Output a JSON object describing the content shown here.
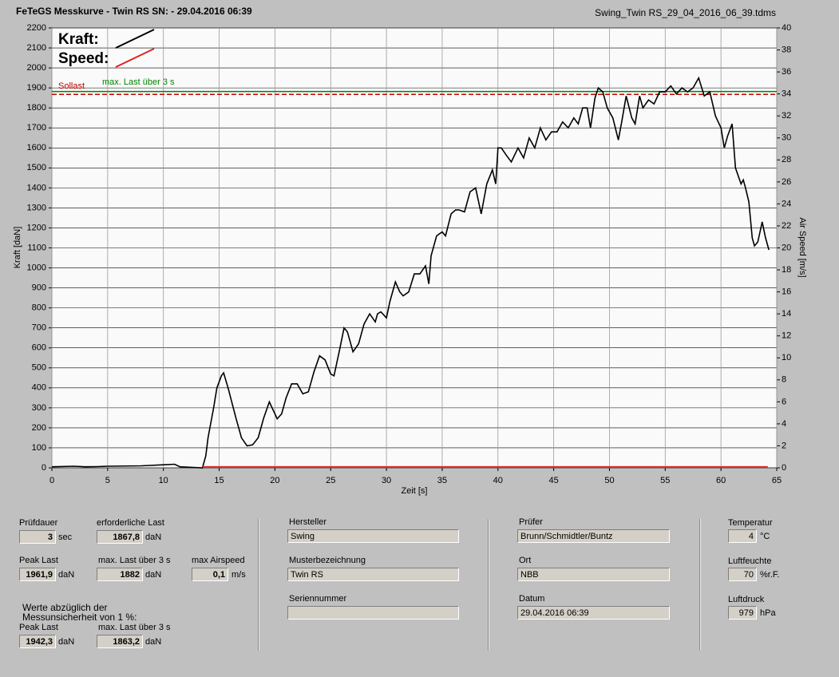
{
  "chart_data": {
    "type": "line",
    "title": "FeTeGS Messkurve - Twin RS  SN:  - 29.04.2016 06:39",
    "subtitle": "Swing_Twin RS_29_04_2016_06_39.tdms",
    "xlabel": "Zeit [s]",
    "ylabel": "Kraft [daN]",
    "y2label": "Air Speed [m/s]",
    "xlim": [
      0,
      65
    ],
    "xticks": [
      0,
      5,
      10,
      15,
      20,
      25,
      30,
      35,
      40,
      45,
      50,
      55,
      60,
      65
    ],
    "ylim": [
      0,
      2200
    ],
    "yticks": [
      0,
      100,
      200,
      300,
      400,
      500,
      600,
      700,
      800,
      900,
      1000,
      1100,
      1200,
      1300,
      1400,
      1500,
      1600,
      1700,
      1800,
      1900,
      2000,
      2100,
      2200
    ],
    "y2lim": [
      0,
      40
    ],
    "y2ticks": [
      0,
      2,
      4,
      6,
      8,
      10,
      12,
      14,
      16,
      18,
      20,
      22,
      24,
      26,
      28,
      30,
      32,
      34,
      36,
      38,
      40
    ],
    "grid": true,
    "legend": "upper left",
    "series": [
      {
        "name": "Kraft:",
        "color": "#000000",
        "x": [
          0,
          2,
          3,
          4,
          5,
          8,
          10,
          11,
          11.5,
          13.5,
          13.8,
          14,
          14.5,
          14.8,
          15.2,
          15.4,
          15.8,
          16.5,
          17,
          17.5,
          18,
          18.5,
          19,
          19.5,
          20,
          20.2,
          20.6,
          21,
          21.5,
          22,
          22.5,
          23,
          23.5,
          24,
          24.5,
          25,
          25.3,
          25.8,
          26.2,
          26.5,
          27,
          27.5,
          28,
          28.5,
          29,
          29.2,
          29.5,
          30,
          30.3,
          30.8,
          31.2,
          31.5,
          32,
          32.5,
          33,
          33.5,
          33.8,
          34,
          34.5,
          35,
          35.3,
          35.8,
          36.2,
          36.5,
          37,
          37.5,
          38,
          38.5,
          39,
          39.5,
          39.8,
          40,
          40.3,
          40.8,
          41.2,
          41.8,
          42.3,
          42.8,
          43.3,
          43.8,
          44.3,
          44.8,
          45.3,
          45.8,
          46.3,
          46.8,
          47.2,
          47.6,
          48,
          48.3,
          48.7,
          49,
          49.4,
          49.8,
          50.3,
          50.8,
          51.1,
          51.5,
          52,
          52.3,
          52.7,
          53,
          53.5,
          54,
          54.5,
          55,
          55.5,
          56,
          56.5,
          57,
          57.5,
          58,
          58.5,
          59,
          59.5,
          60,
          60.3,
          60.6,
          61,
          61.3,
          61.8,
          62,
          62.2,
          62.5,
          62.8,
          63,
          63.3,
          63.7,
          64,
          64.3
        ],
        "values": [
          5,
          8,
          5,
          6,
          8,
          10,
          15,
          18,
          5,
          0,
          60,
          150,
          300,
          400,
          460,
          475,
          400,
          250,
          150,
          110,
          115,
          150,
          250,
          330,
          270,
          245,
          270,
          350,
          420,
          420,
          370,
          380,
          480,
          560,
          540,
          470,
          460,
          590,
          700,
          680,
          580,
          620,
          720,
          770,
          730,
          770,
          780,
          750,
          830,
          930,
          880,
          860,
          880,
          970,
          970,
          1010,
          920,
          1060,
          1160,
          1180,
          1160,
          1270,
          1290,
          1290,
          1280,
          1380,
          1400,
          1270,
          1420,
          1490,
          1420,
          1600,
          1600,
          1560,
          1530,
          1600,
          1550,
          1650,
          1600,
          1700,
          1640,
          1680,
          1680,
          1730,
          1700,
          1750,
          1720,
          1800,
          1800,
          1700,
          1850,
          1900,
          1880,
          1800,
          1750,
          1640,
          1730,
          1860,
          1750,
          1720,
          1860,
          1800,
          1840,
          1820,
          1880,
          1880,
          1910,
          1870,
          1900,
          1880,
          1900,
          1950,
          1860,
          1880,
          1760,
          1700,
          1600,
          1660,
          1720,
          1500,
          1420,
          1440,
          1400,
          1330,
          1150,
          1110,
          1130,
          1230,
          1150,
          1090
        ]
      },
      {
        "name": "Speed:",
        "color": "#e02020",
        "axis": "y2",
        "x": [
          13.5,
          64.2
        ],
        "values": [
          0.1,
          0.1
        ]
      }
    ],
    "reference_lines": [
      {
        "label": "Sollast",
        "value": 1867.8,
        "color": "#c00000",
        "style": "dashed"
      },
      {
        "label": "max. Last über  3 s",
        "value": 1882,
        "color": "#008000",
        "style": "solid"
      }
    ]
  },
  "panel": {
    "groups": [
      {
        "fields": [
          {
            "label": "Prüfdauer",
            "value": "3",
            "unit": "sec"
          },
          {
            "label": "erforderliche Last",
            "value": "1867,8",
            "unit": "daN"
          },
          {
            "label": "Peak Last",
            "value": "1961,9",
            "unit": "daN"
          },
          {
            "label": "max. Last über  3 s",
            "value": "1882",
            "unit": "daN"
          },
          {
            "label": "max Airspeed",
            "value": "0,1",
            "unit": "m/s"
          },
          {
            "label": "Peak Last",
            "value": "1942,3",
            "unit": "daN"
          },
          {
            "label": "max. Last über  3 s",
            "value": "1863,2",
            "unit": "daN"
          }
        ],
        "note": [
          "Werte abzüglich der",
          "Messunsicherheit von 1  %:"
        ]
      },
      {
        "fields": [
          {
            "label": "Hersteller",
            "value": "Swing"
          },
          {
            "label": "Musterbezeichnung",
            "value": "Twin RS"
          },
          {
            "label": "Seriennummer"
          }
        ]
      },
      {
        "fields": [
          {
            "label": "Prüfer",
            "value": "Brunn/Schmidtler/Buntz"
          },
          {
            "label": "Ort",
            "value": "NBB"
          },
          {
            "label": "Datum",
            "value": "29.04.2016 06:39"
          }
        ]
      },
      {
        "fields": [
          {
            "label": "Temperatur",
            "value": "4",
            "unit": "°C"
          },
          {
            "label": "Luftfeuchte",
            "value": "70",
            "unit": "%r.F."
          },
          {
            "label": "Luftdruck",
            "value": "979",
            "unit": "hPa"
          }
        ]
      }
    ]
  }
}
